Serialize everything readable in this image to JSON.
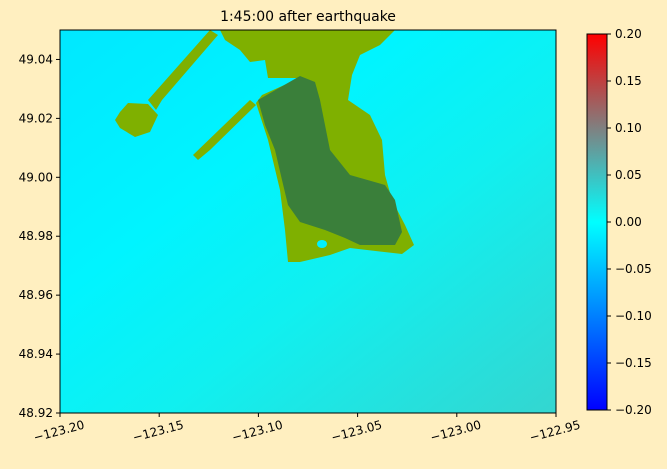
{
  "chart_data": {
    "type": "heatmap",
    "title": "1:45:00 after earthquake",
    "xlim": [
      -123.2,
      -122.95
    ],
    "xticks": [
      {
        "value": -123.2,
        "label": "−123.20"
      },
      {
        "value": -123.15,
        "label": "−123.15"
      },
      {
        "value": -123.1,
        "label": "−123.10"
      },
      {
        "value": -123.05,
        "label": "−123.05"
      },
      {
        "value": -123.0,
        "label": "−123.00"
      },
      {
        "value": -122.95,
        "label": "−122.95"
      }
    ],
    "ylim": [
      48.92,
      49.05
    ],
    "yticks": [
      48.92,
      48.94,
      48.96,
      48.98,
      {
        "value": 49.0,
        "label": "49.00"
      },
      49.02,
      49.04
    ],
    "colorbar": {
      "lim": [
        -0.2,
        0.2
      ],
      "ticks": [
        {
          "value": -0.2,
          "label": "−0.20"
        },
        {
          "value": -0.15,
          "label": "−0.15"
        },
        {
          "value": -0.1,
          "label": "−0.10"
        },
        {
          "value": -0.05,
          "label": "−0.05"
        },
        {
          "value": 0,
          "label": "0.00"
        },
        0.05,
        {
          "value": 0.1,
          "label": "0.10"
        },
        0.15,
        {
          "value": 0.2,
          "label": "0.20"
        }
      ],
      "colors": [
        "#0000ff",
        "#0080ff",
        "#00ffff",
        "#808080",
        "#ff0000"
      ]
    }
  }
}
